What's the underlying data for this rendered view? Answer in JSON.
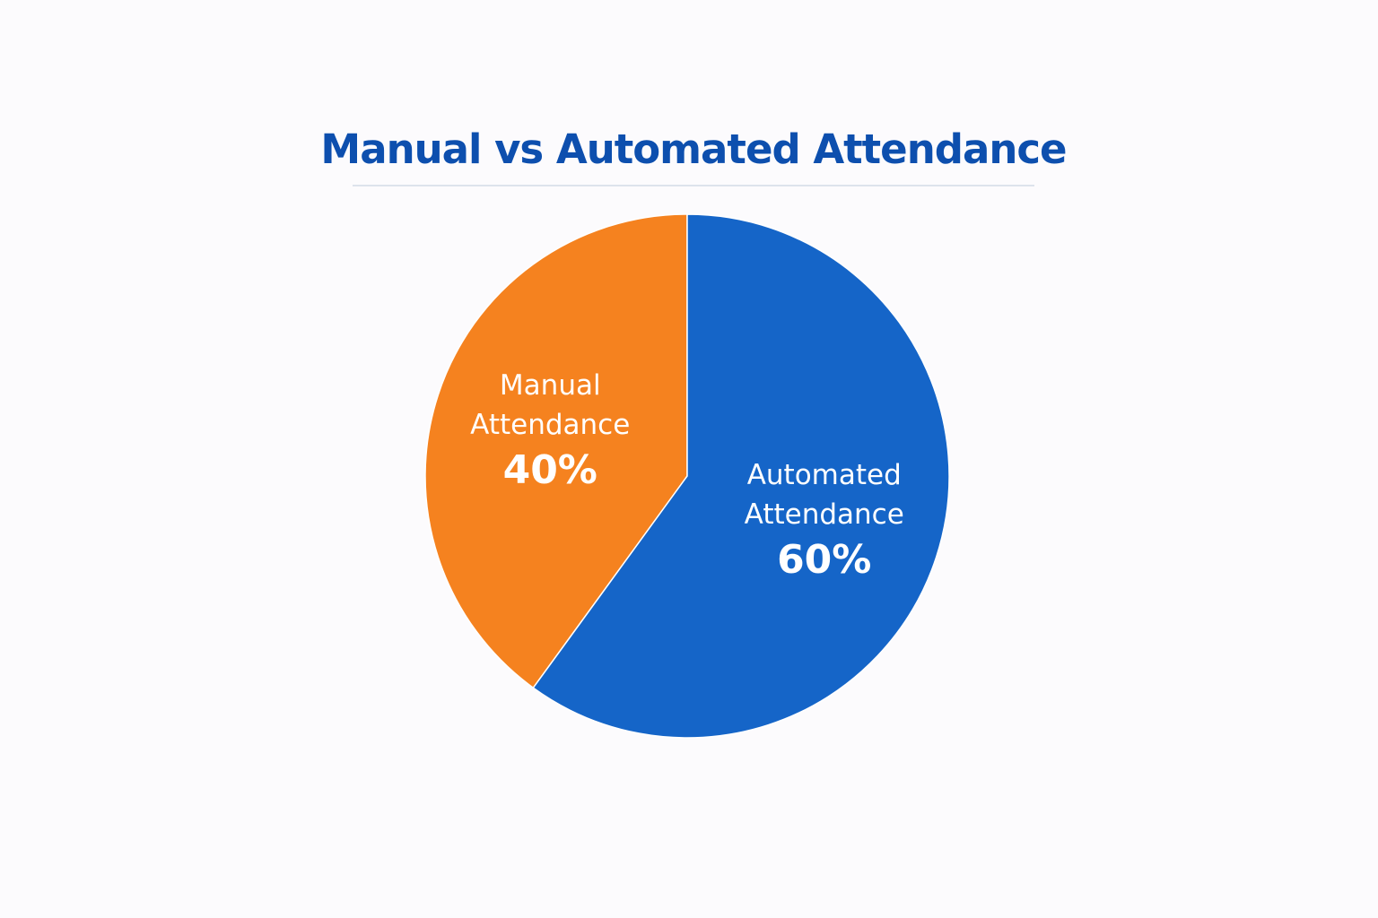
{
  "chart_data": {
    "type": "pie",
    "title": "Manual vs Automated Attendance",
    "categories": [
      "Manual Attendance",
      "Automated Attendance"
    ],
    "values": [
      40,
      60
    ],
    "value_labels": [
      "40%",
      "60%"
    ],
    "colors": [
      "#f5821f",
      "#1565c8"
    ]
  }
}
